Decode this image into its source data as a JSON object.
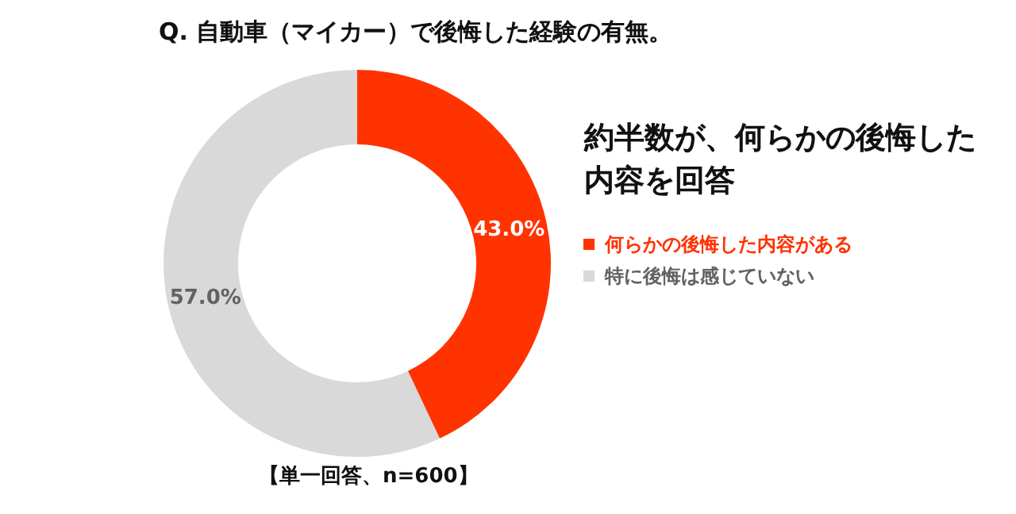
{
  "chart_data": {
    "type": "donut",
    "title": "Q. 自動車（マイカー）で後悔した経験の有無。",
    "categories": [
      "何らかの後悔した内容がある",
      "特に後悔は感じていない"
    ],
    "values": [
      43.0,
      57.0
    ],
    "colors": [
      "#ff3300",
      "#d9d9d9"
    ],
    "value_labels": [
      "43.0%",
      "57.0%"
    ],
    "legend": "right",
    "annotations": [
      "約半数が、何らかの後悔した内容を回答",
      "【単一回答、n=600】"
    ]
  }
}
